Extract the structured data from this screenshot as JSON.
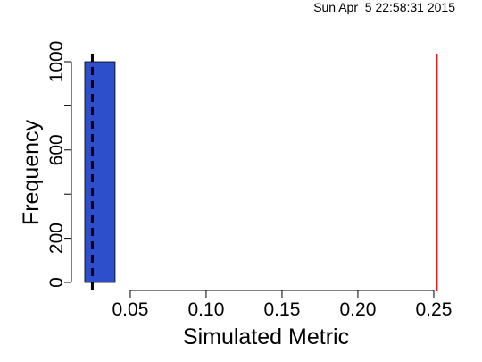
{
  "timestamp": "Sun Apr  5 22:58:31 2015",
  "chart_data": {
    "type": "bar",
    "xlabel": "Simulated Metric",
    "ylabel": "Frequency",
    "x_ticks": [
      0.05,
      0.1,
      0.15,
      0.2,
      0.25
    ],
    "x_tick_labels": [
      "0.05",
      "0.10",
      "0.15",
      "0.20",
      "0.25"
    ],
    "y_ticks": [
      0,
      200,
      600,
      1000
    ],
    "y_tick_labels": [
      "0",
      "200",
      "600",
      "1000"
    ],
    "xlim": [
      0.0165,
      0.2565
    ],
    "ylim": [
      0,
      1000
    ],
    "bins": [
      {
        "x0": 0.02,
        "x1": 0.04,
        "count": 1000
      }
    ],
    "bar_color": "#2E4FCC",
    "reference_lines": [
      {
        "x": 0.025,
        "color": "#000000",
        "style": "dashed"
      },
      {
        "x": 0.252,
        "color": "#E8101A",
        "style": "solid"
      }
    ]
  }
}
